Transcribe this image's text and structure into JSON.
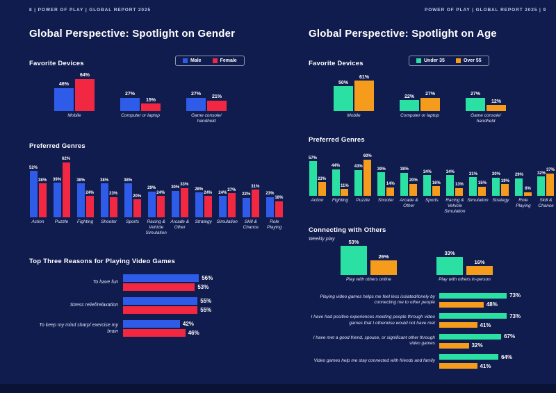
{
  "colors": {
    "background": "#111c4e",
    "footer_band": "#0a1236",
    "male_blue": "#2e5ce8",
    "female_red": "#f22742",
    "under35_green": "#2be0a3",
    "over55_orange": "#f59c1d",
    "text": "#ffffff",
    "muted_text": "#c6cdec"
  },
  "header": {
    "left": "8  |  POWER OF PLAY  |  GLOBAL REPORT 2025",
    "right": "POWER OF PLAY  |  GLOBAL REPORT 2025  |  9"
  },
  "pages": {
    "left": {
      "title": "Global Perspective: Spotlight on Gender"
    },
    "right": {
      "title": "Global Perspective: Spotlight on Age"
    }
  },
  "chart_data": [
    {
      "id": "gender-favorite-devices",
      "type": "bar",
      "title": "Favorite Devices",
      "categories": [
        "Mobile",
        "Computer or laptop",
        "Game console/ handheld"
      ],
      "series": [
        {
          "name": "Male",
          "color": "#2e5ce8",
          "values": [
            46,
            27,
            27
          ]
        },
        {
          "name": "Female",
          "color": "#f22742",
          "values": [
            64,
            15,
            21
          ]
        }
      ],
      "value_suffix": "%",
      "legend_position": "top-right",
      "ylim": [
        0,
        70
      ],
      "grid": false
    },
    {
      "id": "gender-preferred-genres",
      "type": "bar",
      "title": "Preferred Genres",
      "categories": [
        "Action",
        "Puzzle",
        "Fighting",
        "Shooter",
        "Sports",
        "Racing & Vehicle Simulation",
        "Arcade & Other",
        "Strategy",
        "Simulation",
        "Skill & Chance",
        "Role Playing"
      ],
      "series": [
        {
          "name": "Male",
          "color": "#2e5ce8",
          "values": [
            52,
            39,
            38,
            38,
            38,
            29,
            30,
            28,
            24,
            22,
            23
          ]
        },
        {
          "name": "Female",
          "color": "#f22742",
          "values": [
            38,
            62,
            24,
            23,
            20,
            24,
            33,
            24,
            27,
            31,
            18
          ]
        }
      ],
      "value_suffix": "%",
      "ylim": [
        0,
        70
      ],
      "grid": false
    },
    {
      "id": "gender-top-three-reasons",
      "type": "bar-horizontal",
      "title": "Top Three Reasons for Playing Video Games",
      "categories": [
        "To have fun",
        "Stress relief/relaxation",
        "To keep my mind sharp/ exercise my brain"
      ],
      "series": [
        {
          "name": "Male",
          "color": "#2e5ce8",
          "values": [
            56,
            55,
            42
          ]
        },
        {
          "name": "Female",
          "color": "#f22742",
          "values": [
            53,
            55,
            46
          ]
        }
      ],
      "value_suffix": "%",
      "xlim": [
        0,
        60
      ],
      "grid": false
    },
    {
      "id": "age-favorite-devices",
      "type": "bar",
      "title": "Favorite Devices",
      "categories": [
        "Mobile",
        "Computer or laptop",
        "Game console/ handheld"
      ],
      "series": [
        {
          "name": "Under 35",
          "color": "#2be0a3",
          "values": [
            50,
            22,
            27
          ]
        },
        {
          "name": "Over 55",
          "color": "#f59c1d",
          "values": [
            61,
            27,
            12
          ]
        }
      ],
      "value_suffix": "%",
      "legend_position": "top-right",
      "ylim": [
        0,
        70
      ],
      "grid": false
    },
    {
      "id": "age-preferred-genres",
      "type": "bar",
      "title": "Preferred Genres",
      "categories": [
        "Action",
        "Fighting",
        "Puzzle",
        "Shooter",
        "Arcade & Other",
        "Sports",
        "Racing & Vehicle Simulation",
        "Simulation",
        "Strategy",
        "Role Playing",
        "Skill & Chance"
      ],
      "series": [
        {
          "name": "Under 35",
          "color": "#2be0a3",
          "values": [
            57,
            44,
            43,
            39,
            38,
            34,
            34,
            31,
            30,
            29,
            32
          ]
        },
        {
          "name": "Over 55",
          "color": "#f59c1d",
          "values": [
            23,
            11,
            60,
            14,
            20,
            16,
            13,
            15,
            19,
            6,
            37
          ]
        }
      ],
      "value_suffix": "%",
      "ylim": [
        0,
        70
      ],
      "grid": false
    },
    {
      "id": "age-connecting-with-others",
      "type": "bar",
      "title": "Connecting with Others",
      "subtitle": "Weekly play",
      "categories": [
        "Play with others online",
        "Play with others in-person"
      ],
      "series": [
        {
          "name": "Under 35",
          "color": "#2be0a3",
          "values": [
            53,
            33
          ]
        },
        {
          "name": "Over 55",
          "color": "#f59c1d",
          "values": [
            26,
            16
          ]
        }
      ],
      "value_suffix": "%",
      "ylim": [
        0,
        60
      ],
      "grid": false
    },
    {
      "id": "age-connection-statements",
      "type": "bar-horizontal",
      "title": "",
      "categories": [
        "Playing video games helps me feel less isolated/lonely by connecting me to other people",
        "I have had positive experiences meeting people through video games that I otherwise would not have met",
        "I have met a good friend, spouse, or significant other through video games",
        "Video games help me stay connected with friends and family"
      ],
      "series": [
        {
          "name": "Under 35",
          "color": "#2be0a3",
          "values": [
            73,
            73,
            67,
            64
          ]
        },
        {
          "name": "Over 55",
          "color": "#f59c1d",
          "values": [
            48,
            41,
            32,
            41
          ]
        }
      ],
      "value_suffix": "%",
      "xlim": [
        0,
        80
      ],
      "grid": false
    }
  ]
}
